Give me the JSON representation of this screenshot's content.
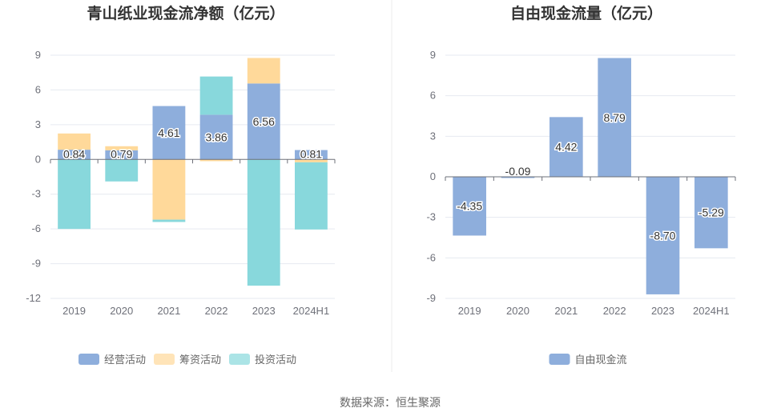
{
  "source_text": "数据来源：恒生聚源",
  "colors": {
    "operating": "#8eaedc",
    "financing": "#ffd99a",
    "investing": "#88d8dc",
    "fcf": "#8eaedc",
    "grid": "#e6e9f0",
    "axis_text": "#6e7079",
    "title_text": "#333333",
    "divider": "#eeeeee"
  },
  "chart_data": [
    {
      "type": "bar",
      "stacked": true,
      "title": "青山纸业现金流净额（亿元）",
      "categories": [
        "2019",
        "2020",
        "2021",
        "2022",
        "2023",
        "2024H1"
      ],
      "ylim": [
        -12,
        9
      ],
      "yticks": [
        9,
        6,
        3,
        0,
        -3,
        -6,
        -9,
        -12
      ],
      "grid": true,
      "legend_position": "bottom",
      "series": [
        {
          "name": "经营活动",
          "values": [
            0.84,
            0.79,
            4.61,
            3.86,
            6.56,
            0.81
          ],
          "labels": [
            "0.84",
            "0.79",
            "4.61",
            "3.86",
            "6.56",
            "0.81"
          ]
        },
        {
          "name": "筹资活动",
          "values": [
            1.4,
            0.35,
            -5.2,
            -0.15,
            2.2,
            -0.25
          ]
        },
        {
          "name": "投资活动",
          "values": [
            -6.0,
            -1.9,
            -0.2,
            3.3,
            -10.9,
            -5.8
          ]
        }
      ]
    },
    {
      "type": "bar",
      "title": "自由现金流量（亿元）",
      "categories": [
        "2019",
        "2020",
        "2021",
        "2022",
        "2023",
        "2024H1"
      ],
      "ylim": [
        -9,
        9
      ],
      "yticks": [
        9,
        6,
        3,
        0,
        -3,
        -6,
        -9
      ],
      "grid": true,
      "legend_position": "bottom",
      "series": [
        {
          "name": "自由现金流",
          "values": [
            -4.35,
            -0.09,
            4.42,
            8.79,
            -8.7,
            -5.29
          ],
          "labels": [
            "-4.35",
            "-0.09",
            "4.42",
            "8.79",
            "-8.70",
            "-5.29"
          ]
        }
      ]
    }
  ]
}
